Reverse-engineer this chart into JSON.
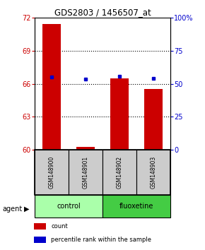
{
  "title": "GDS2803 / 1456507_at",
  "samples": [
    "GSM148900",
    "GSM148901",
    "GSM148902",
    "GSM148903"
  ],
  "red_values": [
    71.4,
    60.3,
    66.5,
    65.5
  ],
  "blue_values": [
    66.6,
    66.4,
    66.65,
    66.5
  ],
  "y_min": 60,
  "y_max": 72,
  "y_ticks": [
    60,
    63,
    66,
    69,
    72
  ],
  "y_right_ticks": [
    0,
    25,
    50,
    75,
    100
  ],
  "y_right_labels": [
    "0",
    "25",
    "50",
    "75",
    "100%"
  ],
  "red_color": "#CC0000",
  "blue_color": "#0000CC",
  "bar_width": 0.55,
  "title_color": "#000000",
  "left_tick_color": "#CC0000",
  "right_tick_color": "#0000CC",
  "sample_box_color": "#CCCCCC",
  "control_color": "#AAFFAA",
  "fluoxetine_color": "#44CC44",
  "group_info": [
    [
      "control",
      0,
      2
    ],
    [
      "fluoxetine",
      2,
      4
    ]
  ],
  "legend_items": [
    [
      "#CC0000",
      "count"
    ],
    [
      "#0000CC",
      "percentile rank within the sample"
    ]
  ]
}
